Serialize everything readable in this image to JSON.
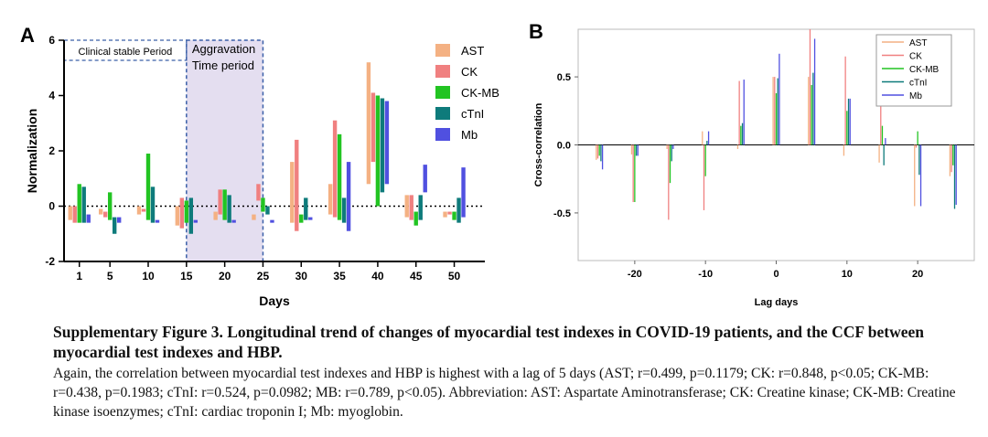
{
  "figure": {
    "caption_title": "Supplementary Figure 3. Longitudinal trend of changes of myocardial test indexes in COVID-19 patients, and the CCF between myocardial test indexes and HBP.",
    "caption_body": "Again, the correlation between myocardial test indexes and HBP is highest with a lag of 5 days (AST; r=0.499, p=0.1179; CK: r=0.848, p<0.05; CK-MB: r=0.438, p=0.1983; cTnI: r=0.524, p=0.0982; MB: r=0.789, p<0.05). Abbreviation: AST: Aspartate Aminotransferase; CK: Creatine kinase; CK-MB: Creatine kinase isoenzymes; cTnI: cardiac troponin I; Mb: myoglobin."
  },
  "colors": {
    "AST": "#f4b183",
    "CK": "#f08080",
    "CK-MB": "#22c422",
    "cTnI": "#0e7b7b",
    "Mb": "#5050e0",
    "period_fill": "#e4def0"
  },
  "chart_data": [
    {
      "panel_letter": "A",
      "type": "bar",
      "xlabel": "Days",
      "ylabel": "Normalization",
      "ylim": [
        -2,
        6
      ],
      "yticks": [
        -2,
        0,
        2,
        4,
        6
      ],
      "xticks": [
        1,
        5,
        10,
        15,
        20,
        25,
        30,
        35,
        40,
        45,
        50
      ],
      "annotations": [
        "Clinical stable Period",
        "Aggravation",
        "Time period"
      ],
      "legend_position": "top-right",
      "series": [
        {
          "name": "AST",
          "ranges": [
            [
              1,
              -0.5,
              0.0
            ],
            [
              5,
              -0.3,
              -0.1
            ],
            [
              10,
              -0.3,
              0.0
            ],
            [
              15,
              -0.7,
              0.0
            ],
            [
              20,
              -0.5,
              -0.2
            ],
            [
              25,
              -0.5,
              -0.3
            ],
            [
              30,
              -0.6,
              1.6
            ],
            [
              35,
              -0.3,
              0.8
            ],
            [
              40,
              0.8,
              5.2
            ],
            [
              45,
              -0.4,
              0.4
            ],
            [
              50,
              -0.4,
              -0.2
            ]
          ]
        },
        {
          "name": "CK",
          "ranges": [
            [
              1,
              -0.6,
              0.0
            ],
            [
              5,
              -0.4,
              -0.2
            ],
            [
              10,
              -0.2,
              -0.1
            ],
            [
              15,
              -0.8,
              0.3
            ],
            [
              20,
              -0.3,
              0.6
            ],
            [
              25,
              0.2,
              0.8
            ],
            [
              30,
              -0.9,
              2.4
            ],
            [
              35,
              -0.4,
              3.1
            ],
            [
              40,
              1.6,
              4.1
            ],
            [
              45,
              -0.5,
              0.4
            ],
            [
              50,
              -0.3,
              -0.2
            ]
          ]
        },
        {
          "name": "CK-MB",
          "ranges": [
            [
              1,
              -0.6,
              0.8
            ],
            [
              5,
              -0.5,
              0.5
            ],
            [
              10,
              -0.5,
              1.9
            ],
            [
              15,
              -0.6,
              0.2
            ],
            [
              20,
              -0.5,
              0.6
            ],
            [
              25,
              -0.2,
              0.3
            ],
            [
              30,
              -0.6,
              -0.3
            ],
            [
              35,
              -0.5,
              2.6
            ],
            [
              40,
              0.0,
              4.0
            ],
            [
              45,
              -0.7,
              -0.2
            ],
            [
              50,
              -0.5,
              -0.2
            ]
          ]
        },
        {
          "name": "cTnI",
          "ranges": [
            [
              1,
              -0.6,
              0.7
            ],
            [
              5,
              -1.0,
              -0.4
            ],
            [
              10,
              -0.6,
              0.7
            ],
            [
              15,
              -1.0,
              0.3
            ],
            [
              20,
              -0.6,
              0.4
            ],
            [
              25,
              -0.3,
              0.0
            ],
            [
              30,
              -0.5,
              0.3
            ],
            [
              35,
              -0.6,
              0.3
            ],
            [
              40,
              0.5,
              3.9
            ],
            [
              45,
              -0.5,
              0.4
            ],
            [
              50,
              -0.6,
              0.3
            ]
          ]
        },
        {
          "name": "Mb",
          "ranges": [
            [
              1,
              -0.6,
              -0.3
            ],
            [
              5,
              -0.6,
              -0.4
            ],
            [
              10,
              -0.6,
              -0.5
            ],
            [
              15,
              -0.6,
              -0.5
            ],
            [
              20,
              -0.6,
              -0.5
            ],
            [
              25,
              -0.6,
              -0.5
            ],
            [
              30,
              -0.5,
              -0.4
            ],
            [
              35,
              -0.9,
              1.6
            ],
            [
              40,
              0.8,
              3.8
            ],
            [
              45,
              0.5,
              1.5
            ],
            [
              50,
              -0.4,
              1.4
            ]
          ]
        }
      ]
    },
    {
      "panel_letter": "B",
      "type": "bar",
      "xlabel": "Lag days",
      "ylabel": "Cross-correlation",
      "ylim": [
        -0.85,
        0.85
      ],
      "xlim": [
        -28,
        28
      ],
      "yticks": [
        -0.5,
        0.0,
        0.5
      ],
      "xticks": [
        -20,
        -10,
        0,
        10,
        20
      ],
      "legend_position": "top-right",
      "lags": [
        -25,
        -20,
        -15,
        -10,
        -5,
        0,
        5,
        10,
        15,
        20,
        25
      ],
      "series": [
        {
          "name": "AST",
          "values": [
            -0.11,
            -0.07,
            -0.03,
            0.1,
            -0.03,
            0.5,
            0.5,
            -0.08,
            -0.13,
            -0.45,
            -0.23
          ]
        },
        {
          "name": "CK",
          "values": [
            -0.1,
            -0.42,
            -0.55,
            -0.48,
            0.47,
            0.5,
            0.85,
            0.65,
            0.38,
            -0.02,
            -0.2
          ]
        },
        {
          "name": "CK-MB",
          "values": [
            -0.08,
            -0.42,
            -0.28,
            -0.23,
            0.14,
            0.38,
            0.44,
            0.25,
            0.14,
            0.1,
            -0.15
          ]
        },
        {
          "name": "cTnI",
          "values": [
            -0.12,
            -0.08,
            -0.12,
            0.03,
            0.16,
            0.49,
            0.53,
            0.34,
            -0.15,
            -0.22,
            -0.47
          ]
        },
        {
          "name": "Mb",
          "values": [
            -0.18,
            -0.08,
            -0.03,
            0.1,
            0.48,
            0.67,
            0.78,
            0.34,
            0.05,
            -0.45,
            -0.44
          ]
        }
      ]
    }
  ]
}
